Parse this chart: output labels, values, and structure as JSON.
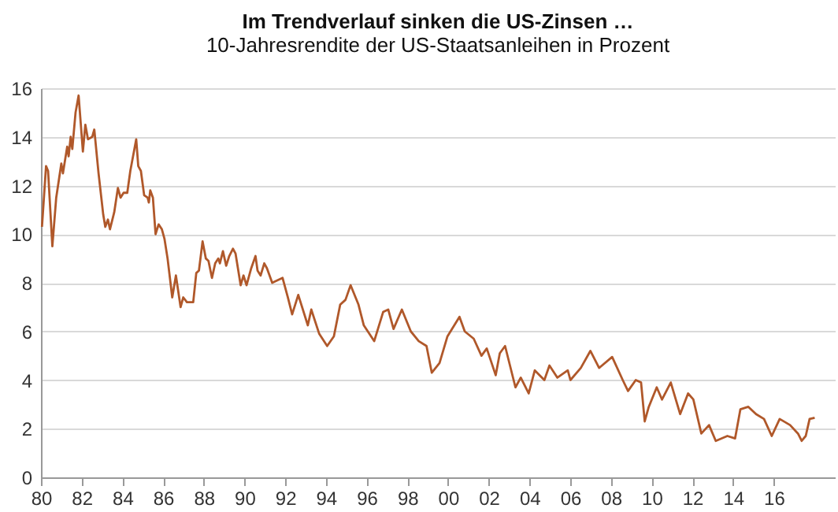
{
  "chart_data": {
    "type": "line",
    "title": "Im Trendverlauf sinken die US-Zinsen …",
    "subtitle": "10-Jahresrendite der US-Staatsanleihen in Prozent",
    "x": [
      1980.05,
      1980.25,
      1980.35,
      1980.56,
      1980.75,
      1981.0,
      1981.08,
      1981.29,
      1981.36,
      1981.46,
      1981.54,
      1981.7,
      1981.85,
      1982.06,
      1982.18,
      1982.31,
      1982.52,
      1982.62,
      1982.83,
      1983.06,
      1983.16,
      1983.29,
      1983.39,
      1983.6,
      1983.78,
      1983.91,
      1984.06,
      1984.24,
      1984.39,
      1984.68,
      1984.78,
      1984.91,
      1985.07,
      1985.24,
      1985.3,
      1985.37,
      1985.5,
      1985.63,
      1985.78,
      1985.94,
      1986.07,
      1986.22,
      1986.45,
      1986.63,
      1986.86,
      1986.99,
      1987.17,
      1987.48,
      1987.63,
      1987.76,
      1987.94,
      1988.1,
      1988.23,
      1988.4,
      1988.56,
      1988.71,
      1988.79,
      1988.94,
      1989.1,
      1989.25,
      1989.43,
      1989.56,
      1989.81,
      1989.95,
      1990.1,
      1990.33,
      1990.54,
      1990.64,
      1990.79,
      1990.97,
      1991.1,
      1991.36,
      1991.87,
      1992.13,
      1992.34,
      1992.64,
      1993.11,
      1993.28,
      1993.67,
      1994.06,
      1994.39,
      1994.7,
      1994.96,
      1995.21,
      1995.6,
      1995.86,
      1996.37,
      1996.81,
      1997.06,
      1997.32,
      1997.73,
      1998.17,
      1998.56,
      1998.94,
      1999.2,
      1999.58,
      1999.97,
      2000.56,
      2000.82,
      2001.26,
      2001.64,
      2001.9,
      2002.34,
      2002.54,
      2002.8,
      2003.31,
      2003.57,
      2003.96,
      2004.26,
      2004.73,
      2004.98,
      2005.37,
      2005.88,
      2006.01,
      2006.52,
      2006.99,
      2007.42,
      2008.06,
      2008.58,
      2008.84,
      2009.22,
      2009.48,
      2009.66,
      2009.86,
      2010.25,
      2010.51,
      2010.94,
      2011.4,
      2011.79,
      2012.05,
      2012.44,
      2012.82,
      2013.15,
      2013.72,
      2014.1,
      2014.36,
      2014.75,
      2015.13,
      2015.52,
      2015.9,
      2016.29,
      2016.8,
      2017.19,
      2017.37,
      2017.57,
      2017.76,
      2018.01
    ],
    "series": [
      {
        "color": "#b0582a",
        "values": [
          10.3,
          12.8,
          12.6,
          9.5,
          11.5,
          12.9,
          12.5,
          13.6,
          13.2,
          14.0,
          13.5,
          15.0,
          15.7,
          13.4,
          14.5,
          13.9,
          14.0,
          14.3,
          12.5,
          10.8,
          10.3,
          10.6,
          10.2,
          10.9,
          11.9,
          11.5,
          11.7,
          11.7,
          12.6,
          13.9,
          12.8,
          12.6,
          11.6,
          11.5,
          11.3,
          11.8,
          11.5,
          10.0,
          10.4,
          10.2,
          9.8,
          9.0,
          7.4,
          8.3,
          7.0,
          7.4,
          7.2,
          7.2,
          8.4,
          8.5,
          9.7,
          9.0,
          8.9,
          8.2,
          8.8,
          9.0,
          8.8,
          9.3,
          8.7,
          9.1,
          9.4,
          9.2,
          7.9,
          8.3,
          7.9,
          8.6,
          9.1,
          8.5,
          8.3,
          8.8,
          8.6,
          8.0,
          8.2,
          7.4,
          6.7,
          7.5,
          6.25,
          6.9,
          5.9,
          5.4,
          5.8,
          7.1,
          7.3,
          7.9,
          7.1,
          6.25,
          5.6,
          6.8,
          6.9,
          6.1,
          6.9,
          6.0,
          5.6,
          5.4,
          4.3,
          4.7,
          5.8,
          6.6,
          6.0,
          5.7,
          5.0,
          5.3,
          4.2,
          5.1,
          5.4,
          3.7,
          4.1,
          3.45,
          4.4,
          4.0,
          4.6,
          4.1,
          4.4,
          4.0,
          4.5,
          5.2,
          4.5,
          4.95,
          4.0,
          3.55,
          4.0,
          3.9,
          2.3,
          2.9,
          3.7,
          3.2,
          3.9,
          2.6,
          3.45,
          3.2,
          1.8,
          2.15,
          1.5,
          1.7,
          1.6,
          2.8,
          2.9,
          2.6,
          2.4,
          1.7,
          2.4,
          2.15,
          1.8,
          1.5,
          1.7,
          2.4,
          2.45
        ]
      }
    ],
    "xlim": [
      1980,
      2019
    ],
    "xticks": [
      {
        "value": 1980,
        "label": "80"
      },
      {
        "value": 1982,
        "label": "82"
      },
      {
        "value": 1984,
        "label": "84"
      },
      {
        "value": 1986,
        "label": "86"
      },
      {
        "value": 1988,
        "label": "88"
      },
      {
        "value": 1990,
        "label": "90"
      },
      {
        "value": 1992,
        "label": "92"
      },
      {
        "value": 1994,
        "label": "94"
      },
      {
        "value": 1996,
        "label": "96"
      },
      {
        "value": 1998,
        "label": "98"
      },
      {
        "value": 2000,
        "label": "00"
      },
      {
        "value": 2002,
        "label": "02"
      },
      {
        "value": 2004,
        "label": "04"
      },
      {
        "value": 2006,
        "label": "06"
      },
      {
        "value": 2008,
        "label": "08"
      },
      {
        "value": 2010,
        "label": "10"
      },
      {
        "value": 2012,
        "label": "12"
      },
      {
        "value": 2014,
        "label": "14"
      },
      {
        "value": 2016,
        "label": "16"
      }
    ],
    "ylim": [
      0,
      16
    ],
    "yticks": [
      0,
      2,
      4,
      6,
      8,
      10,
      12,
      14,
      16
    ],
    "grid": "y",
    "line_style": "solid"
  }
}
